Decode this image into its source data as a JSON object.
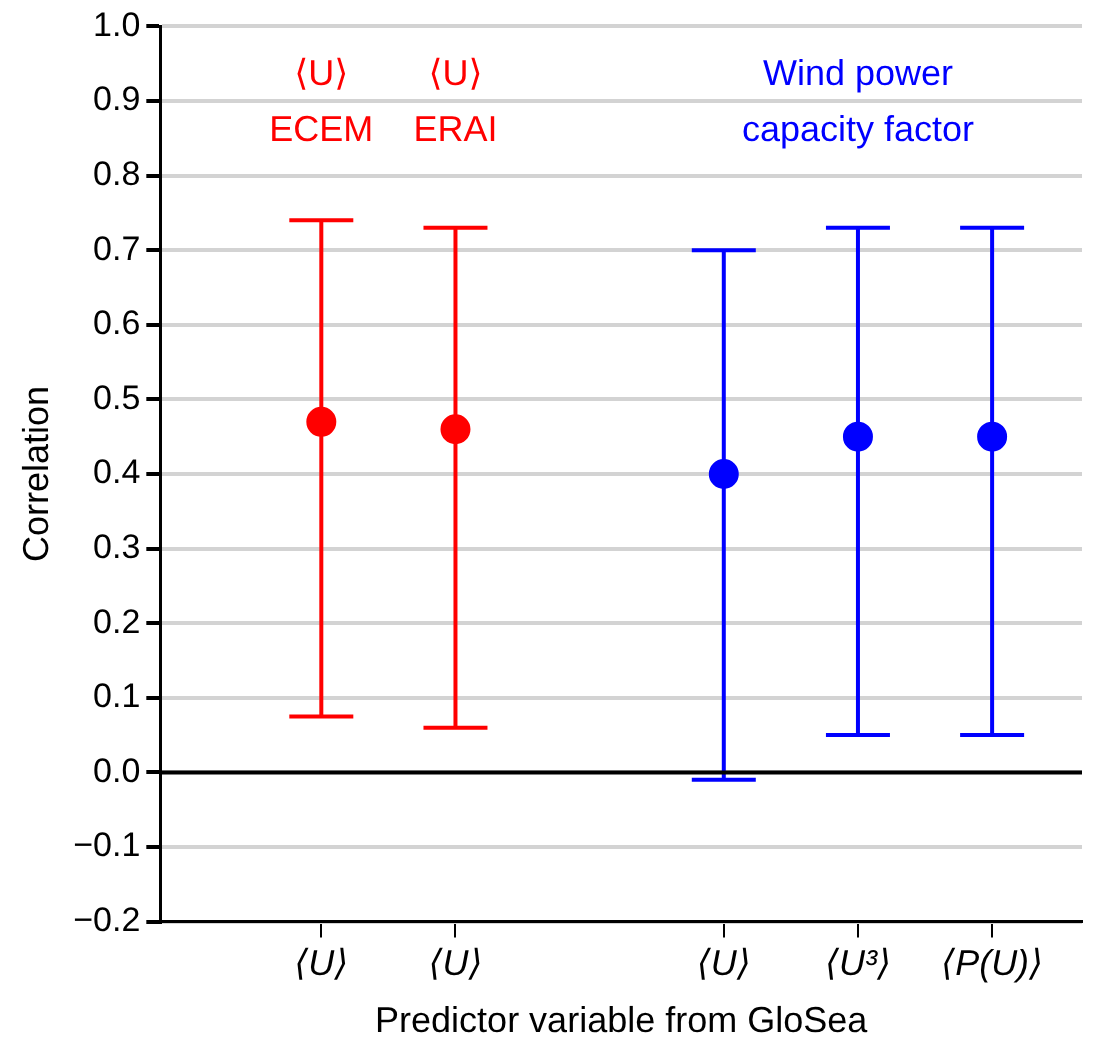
{
  "chart_data": {
    "type": "scatter",
    "xlabel": "Predictor variable from GloSea",
    "ylabel": "Correlation",
    "categories": [
      "⟨U⟩",
      "⟨U⟩",
      null,
      "⟨U⟩",
      "⟨U³⟩",
      "⟨P(U)⟩"
    ],
    "series": [
      {
        "color": "#ff0000",
        "values": [
          0.47,
          0.46,
          null,
          null,
          null,
          null
        ],
        "errors": [
          [
            0.075,
            0.74
          ],
          [
            0.06,
            0.73
          ],
          null,
          null,
          null,
          null
        ]
      },
      {
        "color": "#0000ff",
        "values": [
          null,
          null,
          null,
          0.4,
          0.45,
          0.45
        ],
        "errors": [
          null,
          null,
          null,
          [
            -0.01,
            0.7
          ],
          [
            0.05,
            0.73
          ],
          [
            0.05,
            0.73
          ]
        ]
      }
    ],
    "annotations": [
      "⟨U⟩\nECEM",
      "⟨U⟩\nERAI",
      "Wind power\ncapacity factor"
    ],
    "ylim": [
      -0.2,
      1.0
    ],
    "yticks": [
      {
        "value": -0.2,
        "label": "−0.2"
      },
      {
        "value": -0.1,
        "label": "−0.1"
      },
      {
        "value": 0,
        "label": "0.0"
      },
      {
        "value": 0.1,
        "label": "0.1"
      },
      {
        "value": 0.2,
        "label": "0.2"
      },
      {
        "value": 0.3,
        "label": "0.3"
      },
      {
        "value": 0.4,
        "label": "0.4"
      },
      {
        "value": 0.5,
        "label": "0.5"
      },
      {
        "value": 0.6,
        "label": "0.6"
      },
      {
        "value": 0.7,
        "label": "0.7"
      },
      {
        "value": 0.8,
        "label": "0.8"
      },
      {
        "value": 0.9,
        "label": "0.9"
      },
      {
        "value": 1.0,
        "label": "1.0"
      }
    ],
    "ref_lines": [
      {
        "axis": "y",
        "value": 0,
        "color": "#000000"
      }
    ],
    "grid": "y",
    "marker": "circle"
  }
}
